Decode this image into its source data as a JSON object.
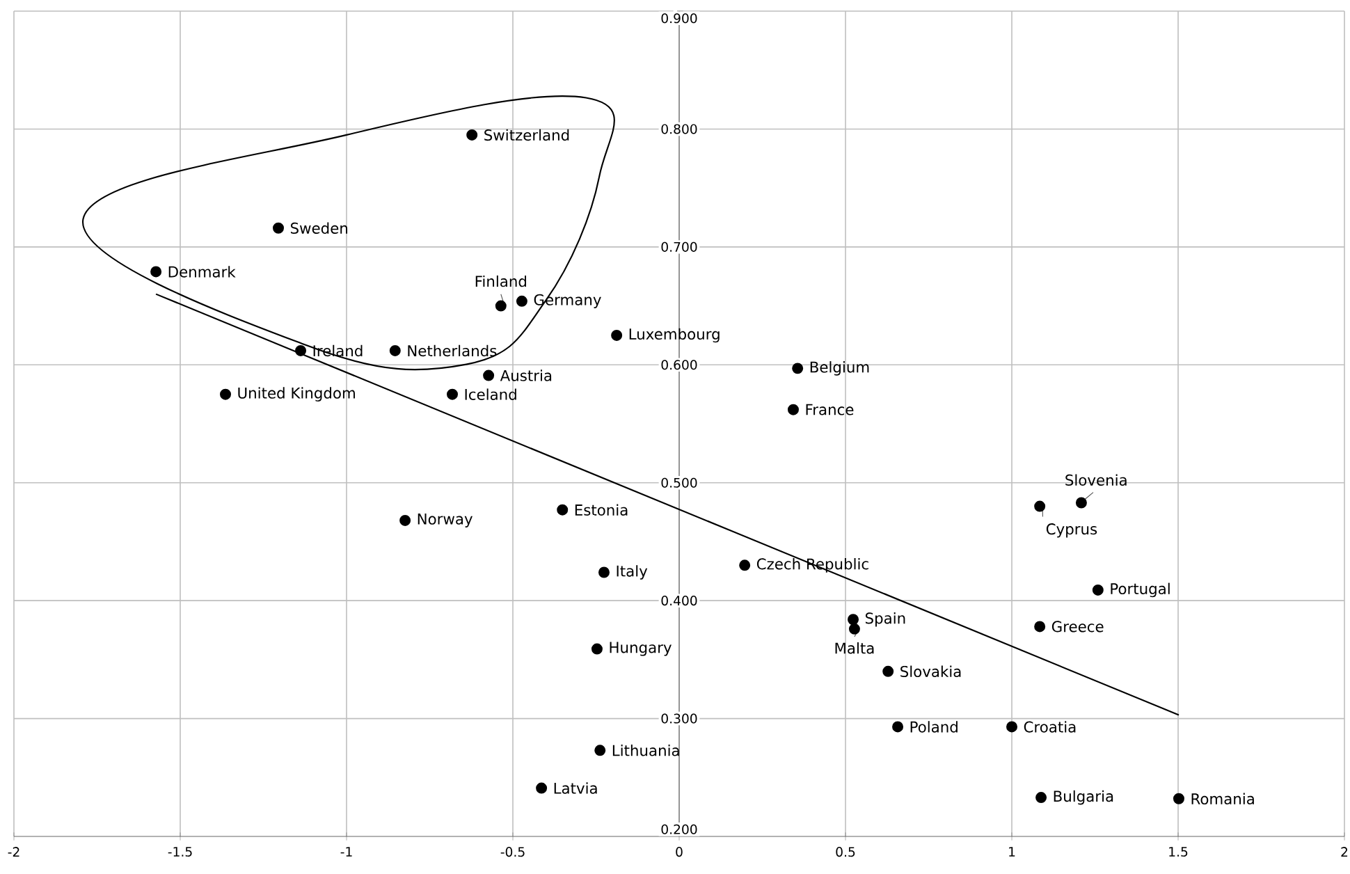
{
  "chart_data": {
    "type": "scatter",
    "xlim": [
      -2,
      2
    ],
    "ylim": [
      0.2,
      0.9
    ],
    "xticks": [
      -2,
      -1.5,
      -1,
      -0.5,
      0,
      0.5,
      1,
      1.5,
      2
    ],
    "yticks": [
      {
        "value": 0.2,
        "label": "0.200"
      },
      {
        "value": 0.3,
        "label": "0.300"
      },
      {
        "value": 0.4,
        "label": "0.400"
      },
      {
        "value": 0.5,
        "label": "0.500"
      },
      {
        "value": 0.6,
        "label": "0.600"
      },
      {
        "value": 0.7,
        "label": "0.700"
      },
      {
        "value": 0.8,
        "label": "0.800"
      },
      {
        "value": 0.9,
        "label": "0.900"
      }
    ],
    "grid": true,
    "series": [
      {
        "color": "#000000",
        "marker": "circle",
        "x": [
          -0.623,
          -1.205,
          -1.573,
          -0.536,
          -0.473,
          -1.138,
          -0.854,
          -0.188,
          -0.573,
          -0.682,
          -1.364,
          0.356,
          0.343,
          1.209,
          1.084,
          -0.351,
          -0.824,
          -0.226,
          0.197,
          1.259,
          0.523,
          0.527,
          1.084,
          -0.247,
          0.628,
          0.657,
          1.0,
          -0.238,
          -0.414,
          1.088,
          1.502
        ],
        "values": [
          0.795,
          0.716,
          0.679,
          0.65,
          0.654,
          0.612,
          0.612,
          0.625,
          0.591,
          0.575,
          0.575,
          0.597,
          0.562,
          0.483,
          0.48,
          0.477,
          0.468,
          0.424,
          0.43,
          0.409,
          0.384,
          0.376,
          0.378,
          0.359,
          0.34,
          0.293,
          0.293,
          0.273,
          0.241,
          0.233,
          0.232
        ]
      },
      {
        "type": "line",
        "color": "#000000",
        "marker": "none",
        "line_style": "solid",
        "x": [
          -1.573,
          1.502
        ],
        "values": [
          0.66,
          0.303
        ]
      }
    ],
    "annotations": [
      {
        "text": "Switzerland",
        "x": -0.623,
        "y": 0.795
      },
      {
        "text": "Sweden",
        "x": -1.205,
        "y": 0.716
      },
      {
        "text": "Denmark",
        "x": -1.573,
        "y": 0.679
      },
      {
        "text": "Finland",
        "x": -0.536,
        "y": 0.65
      },
      {
        "text": "Germany",
        "x": -0.473,
        "y": 0.654
      },
      {
        "text": "Ireland",
        "x": -1.138,
        "y": 0.612
      },
      {
        "text": "Netherlands",
        "x": -0.854,
        "y": 0.612
      },
      {
        "text": "Luxembourg",
        "x": -0.188,
        "y": 0.625
      },
      {
        "text": "Austria",
        "x": -0.573,
        "y": 0.591
      },
      {
        "text": "Iceland",
        "x": -0.682,
        "y": 0.575
      },
      {
        "text": "United Kingdom",
        "x": -1.364,
        "y": 0.575
      },
      {
        "text": "Belgium",
        "x": 0.356,
        "y": 0.597
      },
      {
        "text": "France",
        "x": 0.343,
        "y": 0.562
      },
      {
        "text": "Slovenia",
        "x": 1.209,
        "y": 0.483
      },
      {
        "text": "Cyprus",
        "x": 1.084,
        "y": 0.48
      },
      {
        "text": "Estonia",
        "x": -0.351,
        "y": 0.477
      },
      {
        "text": "Norway",
        "x": -0.824,
        "y": 0.468
      },
      {
        "text": "Italy",
        "x": -0.226,
        "y": 0.424
      },
      {
        "text": "Czech Republic",
        "x": 0.197,
        "y": 0.43
      },
      {
        "text": "Portugal",
        "x": 1.259,
        "y": 0.409
      },
      {
        "text": "Spain",
        "x": 0.523,
        "y": 0.384
      },
      {
        "text": "Malta",
        "x": 0.527,
        "y": 0.376
      },
      {
        "text": "Greece",
        "x": 1.084,
        "y": 0.378
      },
      {
        "text": "Hungary",
        "x": -0.247,
        "y": 0.359
      },
      {
        "text": "Slovakia",
        "x": 0.628,
        "y": 0.34
      },
      {
        "text": "Poland",
        "x": 0.657,
        "y": 0.293
      },
      {
        "text": "Croatia",
        "x": 1.0,
        "y": 0.293
      },
      {
        "text": "Lithuania",
        "x": -0.238,
        "y": 0.273
      },
      {
        "text": "Latvia",
        "x": -0.414,
        "y": 0.241
      },
      {
        "text": "Bulgaria",
        "x": 1.088,
        "y": 0.233
      },
      {
        "text": "Romania",
        "x": 1.502,
        "y": 0.232
      }
    ]
  }
}
